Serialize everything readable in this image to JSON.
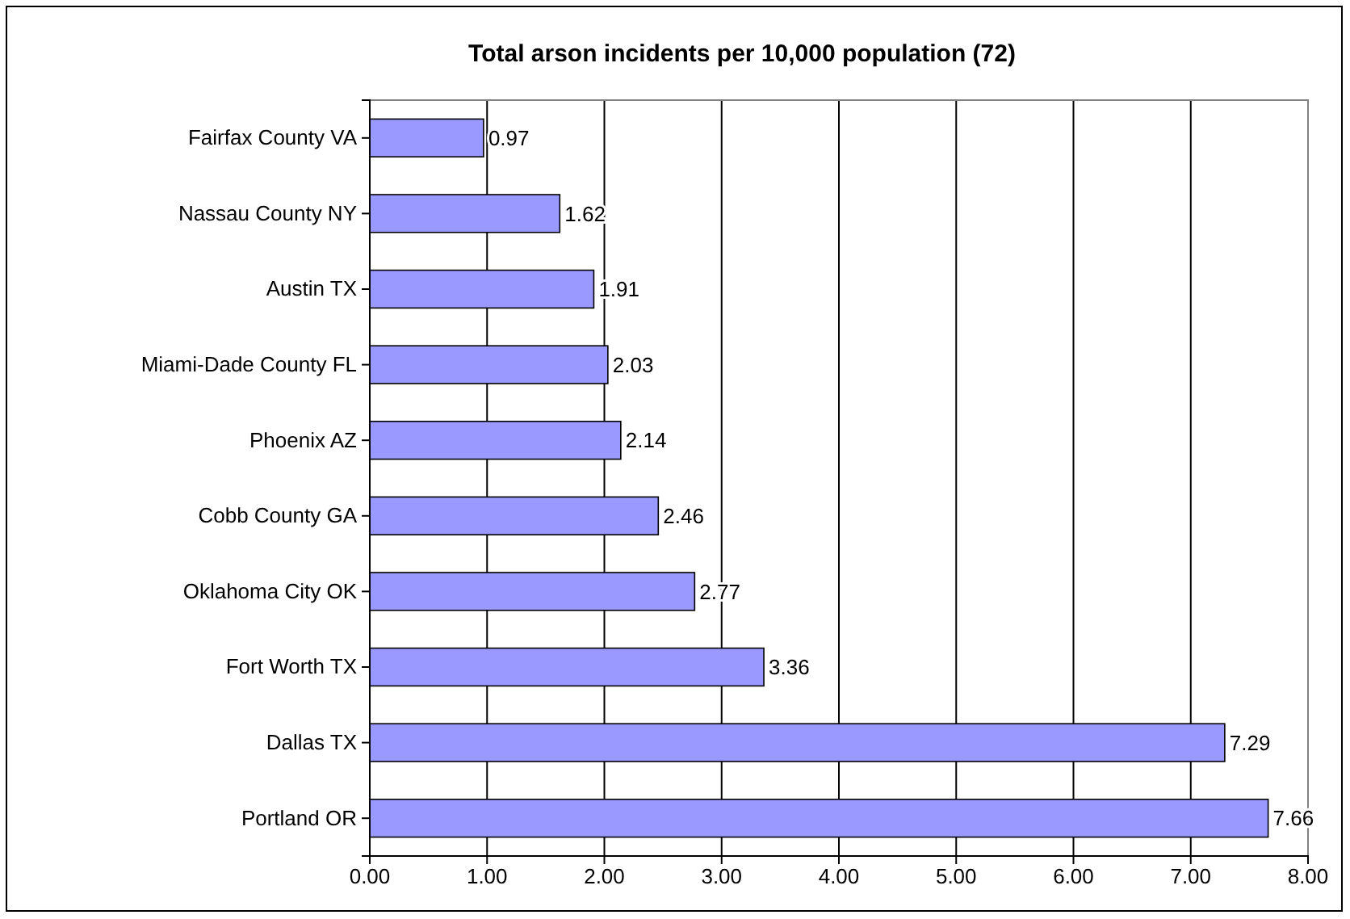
{
  "chart_data": {
    "type": "bar",
    "orientation": "horizontal",
    "title": "Total arson incidents per 10,000 population (72)",
    "categories": [
      "Fairfax County VA",
      "Nassau County NY",
      "Austin TX",
      "Miami-Dade County FL",
      "Phoenix AZ",
      "Cobb County GA",
      "Oklahoma City OK",
      "Fort Worth TX",
      "Dallas TX",
      "Portland OR"
    ],
    "values": [
      0.97,
      1.62,
      1.91,
      2.03,
      2.14,
      2.46,
      2.77,
      3.36,
      7.29,
      7.66
    ],
    "color": "#9999ff",
    "xlim": [
      0,
      8
    ],
    "xticks": [
      {
        "value": 0,
        "label": "0.00"
      },
      {
        "value": 1,
        "label": "1.00"
      },
      {
        "value": 2,
        "label": "2.00"
      },
      {
        "value": 3,
        "label": "3.00"
      },
      {
        "value": 4,
        "label": "4.00"
      },
      {
        "value": 5,
        "label": "5.00"
      },
      {
        "value": 6,
        "label": "6.00"
      },
      {
        "value": 7,
        "label": "7.00"
      },
      {
        "value": 8,
        "label": "8.00"
      }
    ],
    "grid": "x",
    "data_labels": true
  }
}
